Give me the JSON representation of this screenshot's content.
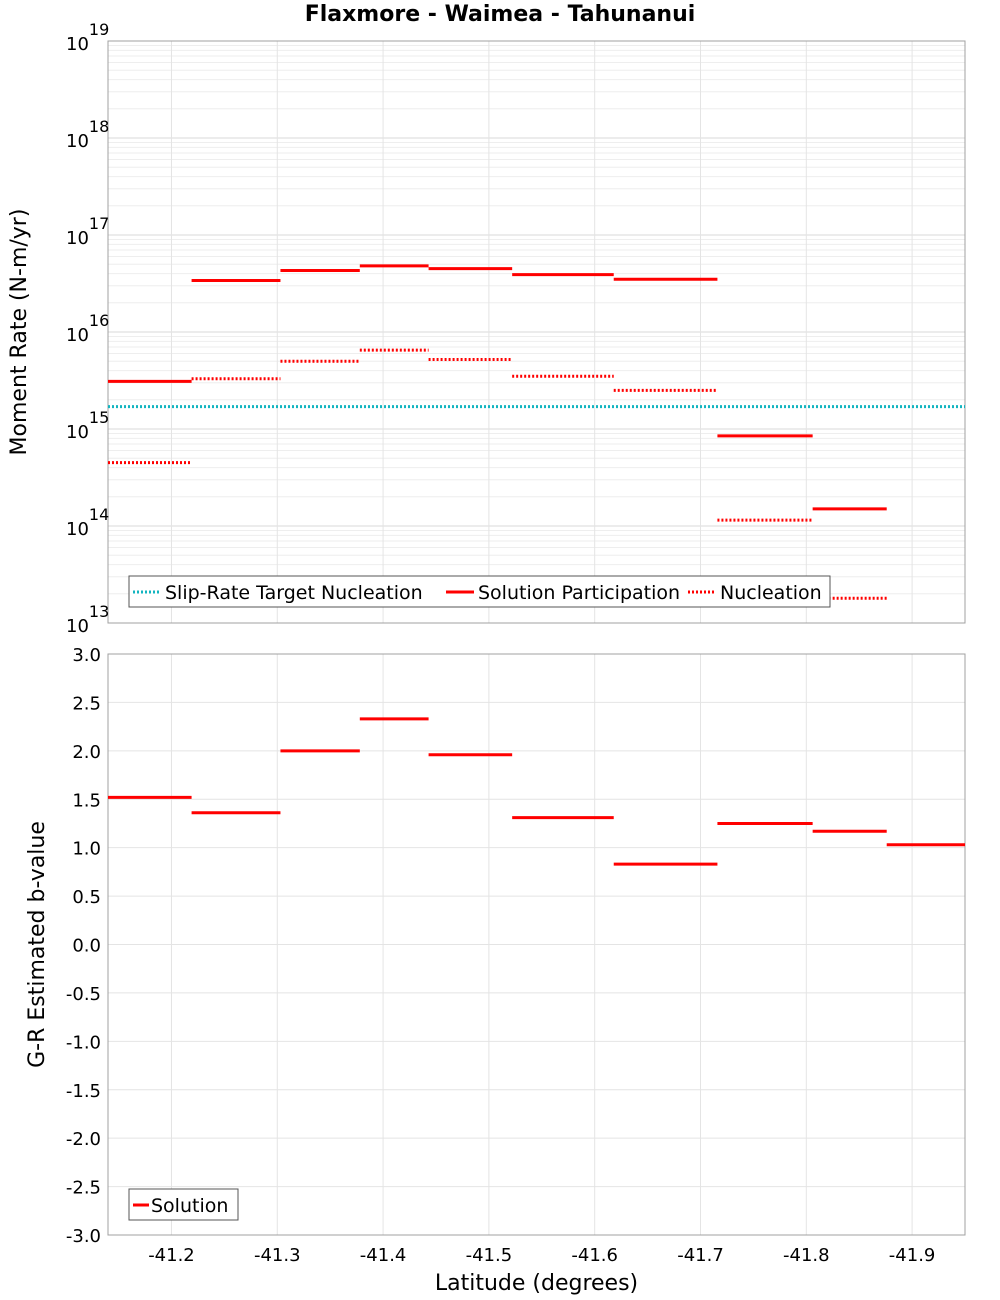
{
  "title": "Flaxmore - Waimea - Tahunanui",
  "colors": {
    "solution": "#ff0000",
    "target": "#13b5c0",
    "grid": "#e4e4e4",
    "frame": "#a0a0a0"
  },
  "chart_data": [
    {
      "type": "line",
      "ylabel": "Moment Rate (N-m/yr)",
      "yscale": "log",
      "ylim": [
        10000000000000.0,
        1e+19
      ],
      "xlim": [
        -41.14,
        -41.95
      ],
      "y_ticks": [
        {
          "base": "10",
          "exp": "19",
          "value": 1e+19
        },
        {
          "base": "10",
          "exp": "18",
          "value": 1e+18
        },
        {
          "base": "10",
          "exp": "17",
          "value": 1e+17
        },
        {
          "base": "10",
          "exp": "16",
          "value": 1e+16
        },
        {
          "base": "10",
          "exp": "15",
          "value": 1000000000000000.0
        },
        {
          "base": "10",
          "exp": "14",
          "value": 100000000000000.0
        },
        {
          "base": "10",
          "exp": "13",
          "value": 10000000000000.0
        }
      ],
      "legend_position": "bottom-left",
      "series": [
        {
          "name": "Slip-Rate Target Nucleation",
          "style": "dotted",
          "color": "#13b5c0",
          "segments": [
            [
              -41.14,
              -41.95,
              1700000000000000.0
            ]
          ]
        },
        {
          "name": "Solution Participation",
          "style": "solid",
          "color": "#ff0000",
          "segments": [
            [
              -41.14,
              -41.219,
              3100000000000000.0
            ],
            [
              -41.219,
              -41.303,
              3.4e+16
            ],
            [
              -41.303,
              -41.378,
              4.3e+16
            ],
            [
              -41.378,
              -41.443,
              4.8e+16
            ],
            [
              -41.443,
              -41.522,
              4.5e+16
            ],
            [
              -41.522,
              -41.618,
              3.9e+16
            ],
            [
              -41.618,
              -41.716,
              3.5e+16
            ],
            [
              -41.716,
              -41.806,
              850000000000000.0
            ],
            [
              -41.806,
              -41.876,
              150000000000000.0
            ]
          ]
        },
        {
          "name": "Nucleation",
          "style": "dotted",
          "color": "#ff0000",
          "segments": [
            [
              -41.14,
              -41.219,
              450000000000000.0
            ],
            [
              -41.219,
              -41.303,
              3300000000000000.0
            ],
            [
              -41.303,
              -41.378,
              5000000000000000.0
            ],
            [
              -41.378,
              -41.443,
              6500000000000000.0
            ],
            [
              -41.443,
              -41.522,
              5200000000000000.0
            ],
            [
              -41.522,
              -41.618,
              3500000000000000.0
            ],
            [
              -41.618,
              -41.716,
              2500000000000000.0
            ],
            [
              -41.716,
              -41.806,
              115000000000000.0
            ],
            [
              -41.806,
              -41.876,
              18000000000000.0
            ]
          ]
        }
      ]
    },
    {
      "type": "line",
      "ylabel": "G-R Estimated b-value",
      "xlabel": "Latitude (degrees)",
      "ylim": [
        -3.0,
        3.0
      ],
      "xlim": [
        -41.14,
        -41.95
      ],
      "y_ticks": [
        "3.0",
        "2.5",
        "2.0",
        "1.5",
        "1.0",
        "0.5",
        "0.0",
        "-0.5",
        "-1.0",
        "-1.5",
        "-2.0",
        "-2.5",
        "-3.0"
      ],
      "x_ticks": [
        "-41.2",
        "-41.3",
        "-41.4",
        "-41.5",
        "-41.6",
        "-41.7",
        "-41.8",
        "-41.9"
      ],
      "legend_position": "bottom-left",
      "series": [
        {
          "name": "Solution",
          "style": "solid",
          "color": "#ff0000",
          "segments": [
            [
              -41.14,
              -41.219,
              1.52
            ],
            [
              -41.219,
              -41.303,
              1.36
            ],
            [
              -41.303,
              -41.378,
              2.0
            ],
            [
              -41.378,
              -41.443,
              2.33
            ],
            [
              -41.443,
              -41.522,
              1.96
            ],
            [
              -41.522,
              -41.618,
              1.31
            ],
            [
              -41.618,
              -41.716,
              0.83
            ],
            [
              -41.716,
              -41.806,
              1.25
            ],
            [
              -41.806,
              -41.876,
              1.17
            ],
            [
              -41.876,
              -41.95,
              1.03
            ]
          ]
        }
      ]
    }
  ]
}
